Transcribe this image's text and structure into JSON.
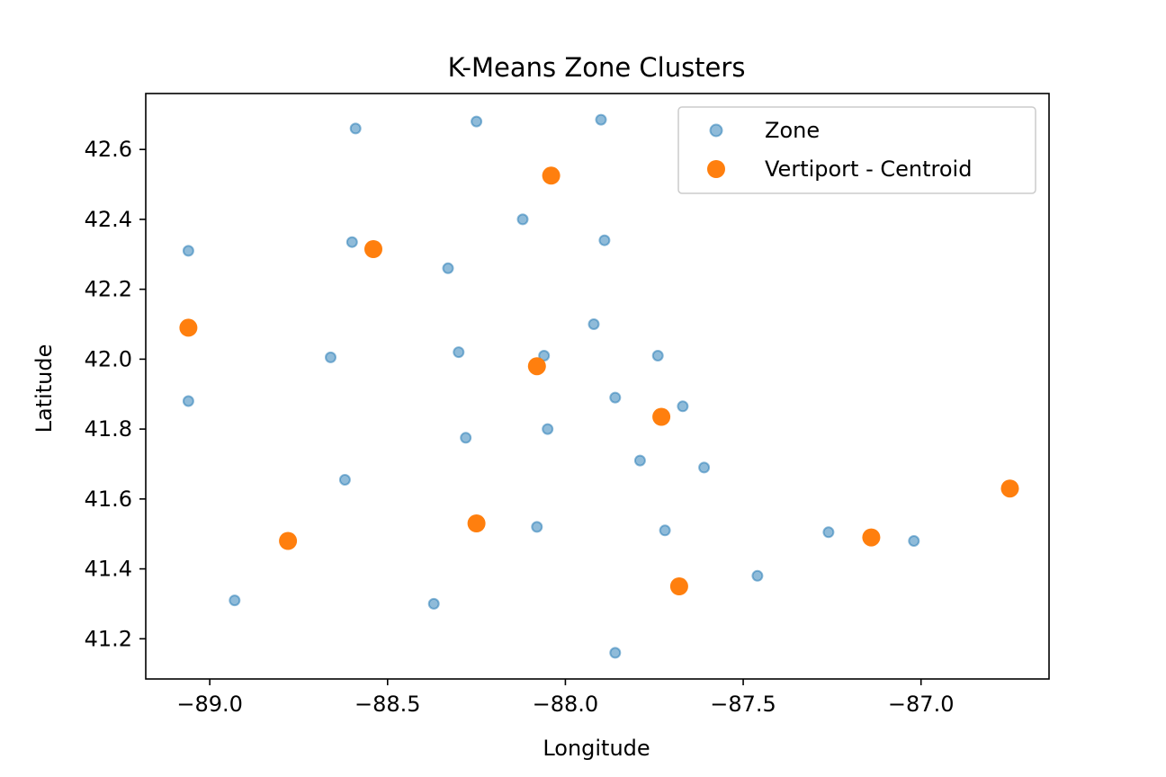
{
  "chart_data": {
    "type": "scatter",
    "title": "K-Means Zone Clusters",
    "xlabel": "Longitude",
    "ylabel": "Latitude",
    "xlim": [
      -89.18,
      -86.64
    ],
    "ylim": [
      41.085,
      42.76
    ],
    "xticks": [
      -89.0,
      -88.5,
      -88.0,
      -87.5,
      -87.0
    ],
    "xtick_labels": [
      "−89.0",
      "−88.5",
      "−88.0",
      "−87.5",
      "−87.0"
    ],
    "yticks": [
      41.2,
      41.4,
      41.6,
      41.8,
      42.0,
      42.2,
      42.4,
      42.6
    ],
    "ytick_labels": [
      "41.2",
      "41.4",
      "41.6",
      "41.8",
      "42.0",
      "42.2",
      "42.4",
      "42.6"
    ],
    "grid": false,
    "legend_position": "top-right",
    "series": [
      {
        "name": "Zone",
        "color": "#1f77b4",
        "opacity": 0.5,
        "x": [
          -88.59,
          -88.25,
          -87.9,
          -89.06,
          -88.6,
          -88.12,
          -87.89,
          -88.33,
          -87.92,
          -88.66,
          -88.3,
          -88.06,
          -87.74,
          -89.06,
          -87.86,
          -87.67,
          -88.05,
          -88.28,
          -87.79,
          -87.61,
          -88.62,
          -88.08,
          -87.72,
          -87.26,
          -87.02,
          -87.46,
          -88.93,
          -88.37,
          -87.86
        ],
        "y": [
          42.66,
          42.68,
          42.685,
          42.31,
          42.335,
          42.4,
          42.34,
          42.26,
          42.1,
          42.005,
          42.02,
          42.01,
          42.01,
          41.88,
          41.89,
          41.865,
          41.8,
          41.775,
          41.71,
          41.69,
          41.655,
          41.52,
          41.51,
          41.505,
          41.48,
          41.38,
          41.31,
          41.3,
          41.16
        ]
      },
      {
        "name": "Vertiport - Centroid",
        "color": "#ff7f0e",
        "opacity": 1,
        "x": [
          -88.04,
          -88.54,
          -89.06,
          -88.08,
          -87.73,
          -86.75,
          -88.78,
          -88.25,
          -87.14,
          -87.68
        ],
        "y": [
          42.525,
          42.315,
          42.09,
          41.98,
          41.835,
          41.63,
          41.48,
          41.53,
          41.49,
          41.35
        ]
      }
    ]
  }
}
